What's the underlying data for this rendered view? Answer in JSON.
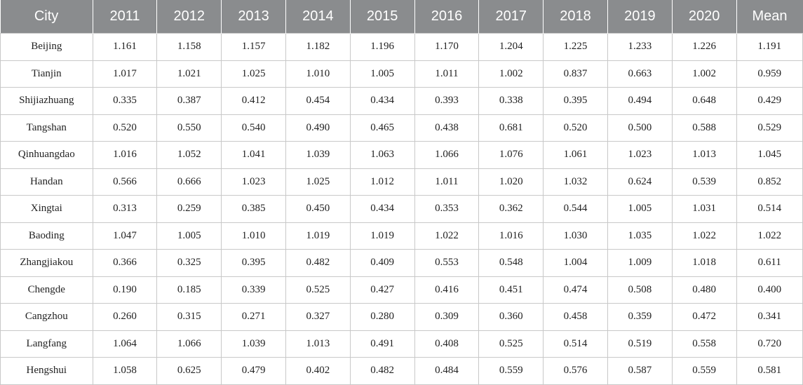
{
  "table": {
    "headers": [
      "City",
      "2011",
      "2012",
      "2013",
      "2014",
      "2015",
      "2016",
      "2017",
      "2018",
      "2019",
      "2020",
      "Mean"
    ],
    "rows": [
      [
        "Beijing",
        "1.161",
        "1.158",
        "1.157",
        "1.182",
        "1.196",
        "1.170",
        "1.204",
        "1.225",
        "1.233",
        "1.226",
        "1.191"
      ],
      [
        "Tianjin",
        "1.017",
        "1.021",
        "1.025",
        "1.010",
        "1.005",
        "1.011",
        "1.002",
        "0.837",
        "0.663",
        "1.002",
        "0.959"
      ],
      [
        "Shijiazhuang",
        "0.335",
        "0.387",
        "0.412",
        "0.454",
        "0.434",
        "0.393",
        "0.338",
        "0.395",
        "0.494",
        "0.648",
        "0.429"
      ],
      [
        "Tangshan",
        "0.520",
        "0.550",
        "0.540",
        "0.490",
        "0.465",
        "0.438",
        "0.681",
        "0.520",
        "0.500",
        "0.588",
        "0.529"
      ],
      [
        "Qinhuangdao",
        "1.016",
        "1.052",
        "1.041",
        "1.039",
        "1.063",
        "1.066",
        "1.076",
        "1.061",
        "1.023",
        "1.013",
        "1.045"
      ],
      [
        "Handan",
        "0.566",
        "0.666",
        "1.023",
        "1.025",
        "1.012",
        "1.011",
        "1.020",
        "1.032",
        "0.624",
        "0.539",
        "0.852"
      ],
      [
        "Xingtai",
        "0.313",
        "0.259",
        "0.385",
        "0.450",
        "0.434",
        "0.353",
        "0.362",
        "0.544",
        "1.005",
        "1.031",
        "0.514"
      ],
      [
        "Baoding",
        "1.047",
        "1.005",
        "1.010",
        "1.019",
        "1.019",
        "1.022",
        "1.016",
        "1.030",
        "1.035",
        "1.022",
        "1.022"
      ],
      [
        "Zhangjiakou",
        "0.366",
        "0.325",
        "0.395",
        "0.482",
        "0.409",
        "0.553",
        "0.548",
        "1.004",
        "1.009",
        "1.018",
        "0.611"
      ],
      [
        "Chengde",
        "0.190",
        "0.185",
        "0.339",
        "0.525",
        "0.427",
        "0.416",
        "0.451",
        "0.474",
        "0.508",
        "0.480",
        "0.400"
      ],
      [
        "Cangzhou",
        "0.260",
        "0.315",
        "0.271",
        "0.327",
        "0.280",
        "0.309",
        "0.360",
        "0.458",
        "0.359",
        "0.472",
        "0.341"
      ],
      [
        "Langfang",
        "1.064",
        "1.066",
        "1.039",
        "1.013",
        "0.491",
        "0.408",
        "0.525",
        "0.514",
        "0.519",
        "0.558",
        "0.720"
      ],
      [
        "Hengshui",
        "1.058",
        "0.625",
        "0.479",
        "0.402",
        "0.482",
        "0.484",
        "0.559",
        "0.576",
        "0.587",
        "0.559",
        "0.581"
      ]
    ]
  }
}
